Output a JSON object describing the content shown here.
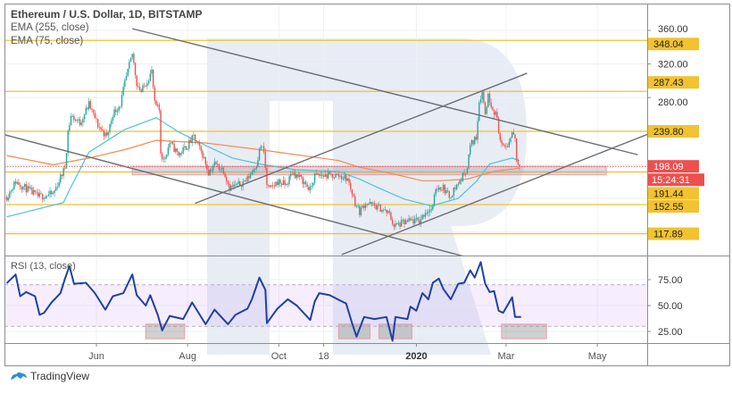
{
  "chart_data": {
    "type": "candlestick",
    "title": "Ethereum / U.S. Dollar, 1D, BITSTAMP",
    "indicators": [
      "EMA (255, close)",
      "EMA (75, close)"
    ],
    "ylim": [
      100,
      370
    ],
    "price_ticks": [
      {
        "value": 360,
        "label": "360.00"
      },
      {
        "value": 320,
        "label": "320.00"
      },
      {
        "value": 280,
        "label": "280.00"
      }
    ],
    "grid_prices": [
      360,
      320,
      280,
      240,
      200,
      160,
      120
    ],
    "levels": [
      {
        "value": 348.04,
        "label": "348.04"
      },
      {
        "value": 287.43,
        "label": "287.43"
      },
      {
        "value": 239.8,
        "label": "239.80"
      },
      {
        "value": 191.44,
        "label": "191.44"
      },
      {
        "value": 152.55,
        "label": "152.55"
      },
      {
        "value": 117.89,
        "label": "117.89"
      }
    ],
    "last_price": {
      "value": 198.09,
      "label": "198.09",
      "countdown": "15:24:31"
    },
    "x_ticks": [
      {
        "date": "2019-06-01",
        "label": "Jun"
      },
      {
        "date": "2019-08-01",
        "label": "Aug"
      },
      {
        "date": "2019-10-01",
        "label": "Oct"
      },
      {
        "date": "2019-10-31",
        "label": "18"
      },
      {
        "date": "2020-01-01",
        "label": "2020"
      },
      {
        "date": "2020-03-01",
        "label": "Mar"
      },
      {
        "date": "2020-05-01",
        "label": "May"
      }
    ],
    "close_series": [
      [
        "2019-04-02",
        162
      ],
      [
        "2019-04-08",
        180
      ],
      [
        "2019-04-23",
        162
      ],
      [
        "2019-05-03",
        165
      ],
      [
        "2019-05-11",
        197
      ],
      [
        "2019-05-13",
        240
      ],
      [
        "2019-05-15",
        258
      ],
      [
        "2019-05-21",
        250
      ],
      [
        "2019-05-27",
        272
      ],
      [
        "2019-06-02",
        247
      ],
      [
        "2019-06-08",
        233
      ],
      [
        "2019-06-12",
        261
      ],
      [
        "2019-06-17",
        272
      ],
      [
        "2019-06-20",
        297
      ],
      [
        "2019-06-24",
        325
      ],
      [
        "2019-06-25",
        332
      ],
      [
        "2019-06-28",
        297
      ],
      [
        "2019-07-01",
        287
      ],
      [
        "2019-07-04",
        297
      ],
      [
        "2019-07-08",
        311
      ],
      [
        "2019-07-10",
        272
      ],
      [
        "2019-07-13",
        265
      ],
      [
        "2019-07-14",
        215
      ],
      [
        "2019-07-16",
        205
      ],
      [
        "2019-07-20",
        226
      ],
      [
        "2019-07-26",
        212
      ],
      [
        "2019-08-01",
        223
      ],
      [
        "2019-08-05",
        233
      ],
      [
        "2019-08-11",
        212
      ],
      [
        "2019-08-15",
        191
      ],
      [
        "2019-08-19",
        201
      ],
      [
        "2019-08-25",
        194
      ],
      [
        "2019-08-29",
        173
      ],
      [
        "2019-09-04",
        176
      ],
      [
        "2019-09-10",
        183
      ],
      [
        "2019-09-16",
        201
      ],
      [
        "2019-09-19",
        223
      ],
      [
        "2019-09-21",
        215
      ],
      [
        "2019-09-23",
        176
      ],
      [
        "2019-09-25",
        170
      ],
      [
        "2019-09-30",
        180
      ],
      [
        "2019-10-06",
        176
      ],
      [
        "2019-10-10",
        191
      ],
      [
        "2019-10-16",
        183
      ],
      [
        "2019-10-22",
        170
      ],
      [
        "2019-10-25",
        187
      ],
      [
        "2019-11-03",
        187
      ],
      [
        "2019-11-10",
        187
      ],
      [
        "2019-11-16",
        183
      ],
      [
        "2019-11-21",
        155
      ],
      [
        "2019-11-24",
        144
      ],
      [
        "2019-11-28",
        155
      ],
      [
        "2019-12-08",
        148
      ],
      [
        "2019-12-14",
        141
      ],
      [
        "2019-12-17",
        127
      ],
      [
        "2019-12-22",
        130
      ],
      [
        "2019-12-28",
        133
      ],
      [
        "2020-01-03",
        133
      ],
      [
        "2020-01-07",
        144
      ],
      [
        "2020-01-12",
        148
      ],
      [
        "2020-01-14",
        173
      ],
      [
        "2020-01-19",
        173
      ],
      [
        "2020-01-23",
        162
      ],
      [
        "2020-01-27",
        173
      ],
      [
        "2020-01-31",
        183
      ],
      [
        "2020-02-04",
        197
      ],
      [
        "2020-02-06",
        223
      ],
      [
        "2020-02-10",
        233
      ],
      [
        "2020-02-12",
        276
      ],
      [
        "2020-02-14",
        287
      ],
      [
        "2020-02-16",
        261
      ],
      [
        "2020-02-18",
        282
      ],
      [
        "2020-02-21",
        268
      ],
      [
        "2020-02-24",
        255
      ],
      [
        "2020-02-26",
        229
      ],
      [
        "2020-02-28",
        219
      ],
      [
        "2020-03-03",
        226
      ],
      [
        "2020-03-05",
        240
      ],
      [
        "2020-03-07",
        233
      ],
      [
        "2020-03-08",
        205
      ],
      [
        "2020-03-10",
        198.09
      ]
    ],
    "ema75": [
      [
        "2019-04-02",
        138
      ],
      [
        "2019-05-10",
        155
      ],
      [
        "2019-05-14",
        170
      ],
      [
        "2019-05-27",
        215
      ],
      [
        "2019-06-20",
        242
      ],
      [
        "2019-07-11",
        256
      ],
      [
        "2019-07-26",
        239
      ],
      [
        "2019-08-13",
        223
      ],
      [
        "2019-08-31",
        208
      ],
      [
        "2019-09-18",
        201
      ],
      [
        "2019-10-12",
        194
      ],
      [
        "2019-11-10",
        192
      ],
      [
        "2019-11-24",
        183
      ],
      [
        "2019-12-06",
        173
      ],
      [
        "2019-12-24",
        159
      ],
      [
        "2020-01-11",
        151
      ],
      [
        "2020-01-29",
        160
      ],
      [
        "2020-02-10",
        180
      ],
      [
        "2020-02-19",
        201
      ],
      [
        "2020-03-05",
        208
      ],
      [
        "2020-03-10",
        205
      ]
    ],
    "ema255": [
      [
        "2019-04-02",
        211
      ],
      [
        "2019-05-03",
        200
      ],
      [
        "2019-05-27",
        208
      ],
      [
        "2019-06-20",
        218
      ],
      [
        "2019-07-11",
        229
      ],
      [
        "2019-08-13",
        226
      ],
      [
        "2019-09-18",
        218
      ],
      [
        "2019-11-10",
        205
      ],
      [
        "2019-11-24",
        197
      ],
      [
        "2019-12-12",
        191
      ],
      [
        "2020-01-05",
        181
      ],
      [
        "2020-01-17",
        181
      ],
      [
        "2020-02-04",
        183
      ],
      [
        "2020-02-22",
        192
      ],
      [
        "2020-03-10",
        196
      ]
    ],
    "trendlines": [
      {
        "from": [
          "2019-06-25",
          362
        ],
        "to": [
          "2020-05-28",
          212
        ]
      },
      {
        "from": [
          "2019-03-29",
          237
        ],
        "to": [
          "2020-02-08",
          88
        ]
      },
      {
        "from": [
          "2019-08-06",
          154
        ],
        "to": [
          "2020-03-15",
          309
        ]
      },
      {
        "from": [
          "2019-11-12",
          93
        ],
        "to": [
          "2020-06-19",
          247
        ]
      }
    ],
    "support_zone": {
      "from": "2019-06-25",
      "to": "2020-05-07",
      "high": 198,
      "low": 188
    },
    "rsi": {
      "label": "RSI (13, close)",
      "upper_band": 70,
      "lower_band": 30,
      "ticks": [
        {
          "value": 75,
          "label": "75.00"
        },
        {
          "value": 50,
          "label": "50.00"
        },
        {
          "value": 25,
          "label": "25.00"
        }
      ],
      "values": [
        [
          "2019-04-02",
          71.5
        ],
        [
          "2019-04-08",
          80
        ],
        [
          "2019-04-11",
          59
        ],
        [
          "2019-04-15",
          63
        ],
        [
          "2019-04-21",
          59
        ],
        [
          "2019-04-24",
          41
        ],
        [
          "2019-04-27",
          43
        ],
        [
          "2019-05-02",
          53
        ],
        [
          "2019-05-08",
          62
        ],
        [
          "2019-05-11",
          76
        ],
        [
          "2019-05-14",
          88
        ],
        [
          "2019-05-17",
          71
        ],
        [
          "2019-05-25",
          72
        ],
        [
          "2019-05-31",
          62
        ],
        [
          "2019-06-07",
          46
        ],
        [
          "2019-06-12",
          59
        ],
        [
          "2019-06-19",
          62
        ],
        [
          "2019-06-25",
          80
        ],
        [
          "2019-06-28",
          60
        ],
        [
          "2019-07-04",
          50
        ],
        [
          "2019-07-07",
          60
        ],
        [
          "2019-07-12",
          41
        ],
        [
          "2019-07-15",
          26
        ],
        [
          "2019-07-20",
          40
        ],
        [
          "2019-07-29",
          37
        ],
        [
          "2019-08-04",
          53
        ],
        [
          "2019-08-13",
          32
        ],
        [
          "2019-08-19",
          46
        ],
        [
          "2019-08-28",
          32
        ],
        [
          "2019-09-02",
          41
        ],
        [
          "2019-09-10",
          47
        ],
        [
          "2019-09-13",
          56
        ],
        [
          "2019-09-18",
          77
        ],
        [
          "2019-09-22",
          65
        ],
        [
          "2019-09-23",
          33
        ],
        [
          "2019-09-30",
          47
        ],
        [
          "2019-10-07",
          56
        ],
        [
          "2019-10-13",
          50
        ],
        [
          "2019-10-22",
          36
        ],
        [
          "2019-10-25",
          54
        ],
        [
          "2019-10-28",
          62
        ],
        [
          "2019-11-04",
          60
        ],
        [
          "2019-11-15",
          52
        ],
        [
          "2019-11-19",
          33
        ],
        [
          "2019-11-22",
          20
        ],
        [
          "2019-11-27",
          39
        ],
        [
          "2019-12-04",
          37
        ],
        [
          "2019-12-12",
          39
        ],
        [
          "2019-12-16",
          16
        ],
        [
          "2019-12-18",
          39
        ],
        [
          "2019-12-26",
          37
        ],
        [
          "2019-12-28",
          49
        ],
        [
          "2020-01-01",
          45
        ],
        [
          "2020-01-05",
          62
        ],
        [
          "2020-01-09",
          56
        ],
        [
          "2020-01-12",
          72
        ],
        [
          "2020-01-16",
          76
        ],
        [
          "2020-01-19",
          66
        ],
        [
          "2020-01-24",
          56
        ],
        [
          "2020-01-29",
          71
        ],
        [
          "2020-02-02",
          72
        ],
        [
          "2020-02-06",
          84
        ],
        [
          "2020-02-09",
          77
        ],
        [
          "2020-02-13",
          92
        ],
        [
          "2020-02-16",
          71
        ],
        [
          "2020-02-19",
          63
        ],
        [
          "2020-02-22",
          64
        ],
        [
          "2020-02-25",
          45
        ],
        [
          "2020-02-28",
          43
        ],
        [
          "2020-03-05",
          58
        ],
        [
          "2020-03-07",
          39
        ],
        [
          "2020-03-11",
          39
        ]
      ],
      "boxes": [
        {
          "from": "2019-07-04",
          "to": "2019-07-30",
          "high": 32,
          "low": 18
        },
        {
          "from": "2019-11-10",
          "to": "2019-12-01",
          "high": 32,
          "low": 18
        },
        {
          "from": "2019-12-07",
          "to": "2019-12-29",
          "high": 32,
          "low": 18
        },
        {
          "from": "2020-02-27",
          "to": "2020-03-28",
          "high": 32,
          "low": 18
        }
      ]
    },
    "colors": {
      "up": "#26a69a",
      "down": "#ef5350",
      "ema75": "#4cc3dd",
      "ema255": "#f58a4b",
      "level": "#f2c230",
      "rsi": "#1e40a6",
      "last": "#ef4f4f"
    }
  },
  "brand": {
    "name": "TradingView"
  }
}
